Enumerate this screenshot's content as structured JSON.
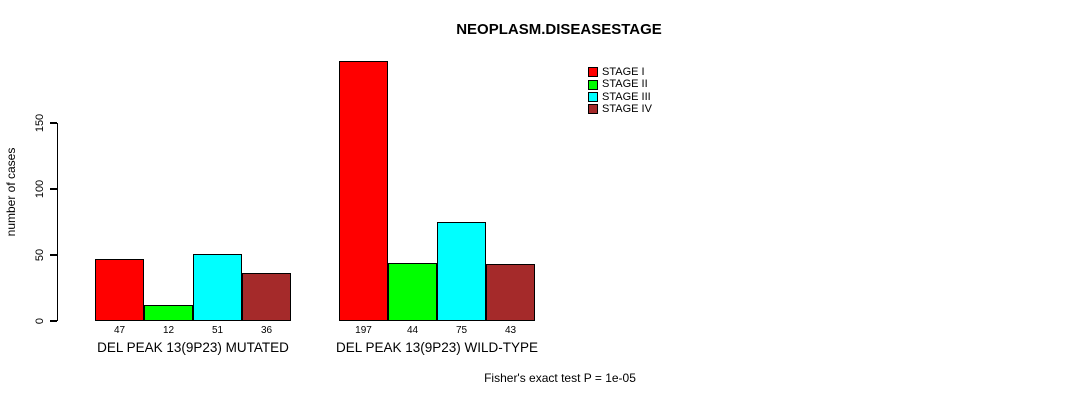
{
  "chart_data": {
    "type": "bar",
    "title": "NEOPLASM.DISEASESTAGE",
    "xlabel": "",
    "ylabel": "number of cases",
    "groups": [
      "DEL PEAK 13(9P23) MUTATED",
      "DEL PEAK 13(9P23) WILD-TYPE"
    ],
    "series": [
      {
        "name": "STAGE I",
        "color": "#FF0000",
        "values": [
          47,
          197
        ]
      },
      {
        "name": "STAGE II",
        "color": "#00FF00",
        "values": [
          12,
          44
        ]
      },
      {
        "name": "STAGE III",
        "color": "#00FFFF",
        "values": [
          51,
          75
        ]
      },
      {
        "name": "STAGE IV",
        "color": "#A52A2A",
        "values": [
          36,
          43
        ]
      }
    ],
    "yticks": [
      0,
      50,
      100,
      150
    ],
    "ylim": [
      0,
      200
    ],
    "bar_value_labels": true,
    "legend_position": "top-right",
    "grid": false,
    "annotation": "Fisher's exact test P = 1e-05"
  }
}
